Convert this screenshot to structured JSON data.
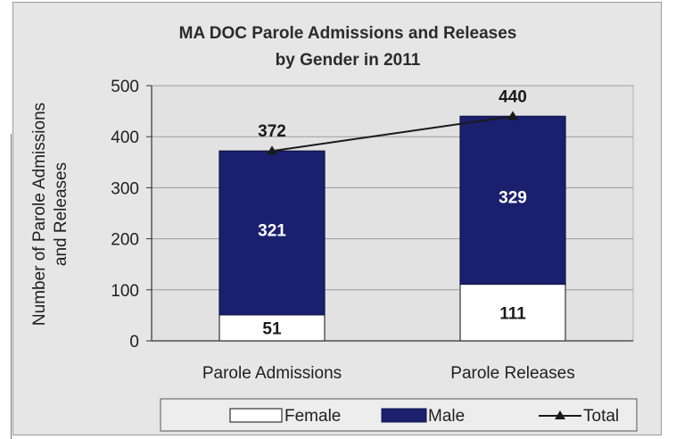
{
  "chart_data": {
    "type": "bar",
    "stacked": true,
    "title": "MA DOC Parole Admissions and Releases",
    "subtitle": "by Gender in 2011",
    "ylabel_line1": "Number of Parole Admissions",
    "ylabel_line2": "and Releases",
    "xlabel": "",
    "ylim": [
      0,
      500
    ],
    "yticks": [
      0,
      100,
      200,
      300,
      400,
      500
    ],
    "categories": [
      "Parole Admissions",
      "Parole Releases"
    ],
    "series": [
      {
        "name": "Female",
        "values": [
          51,
          111
        ],
        "color": "#ffffff",
        "labels": [
          "51",
          "111"
        ]
      },
      {
        "name": "Male",
        "values": [
          321,
          329
        ],
        "color": "#1a1f6e",
        "labels": [
          "321",
          "329"
        ]
      },
      {
        "name": "Total",
        "values": [
          372,
          440
        ],
        "color": "#1a1a1a",
        "labels": [
          "372",
          "440"
        ],
        "render": "line"
      }
    ],
    "grid": true,
    "legend_position": "bottom"
  }
}
